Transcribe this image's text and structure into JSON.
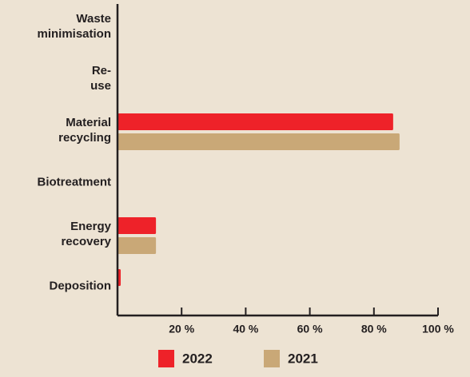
{
  "chart_data": {
    "type": "barh",
    "categories": [
      "Waste minimisation",
      "Re-use",
      "Material recycling",
      "Biotreatment",
      "Energy recovery",
      "Deposition"
    ],
    "series": [
      {
        "name": "2022",
        "color": "#ee2229",
        "values": [
          0,
          0,
          86,
          0,
          12,
          1
        ]
      },
      {
        "name": "2021",
        "color": "#c9a877",
        "values": [
          0,
          0,
          88,
          0,
          12,
          0
        ]
      }
    ],
    "xlim": [
      0,
      100
    ],
    "xticks": [
      {
        "value": 20,
        "label": "20 %"
      },
      {
        "value": 40,
        "label": "40 %"
      },
      {
        "value": 60,
        "label": "60 %"
      },
      {
        "value": 80,
        "label": "80 %"
      },
      {
        "value": 100,
        "label": "100 %"
      }
    ],
    "legend": "bottom"
  }
}
